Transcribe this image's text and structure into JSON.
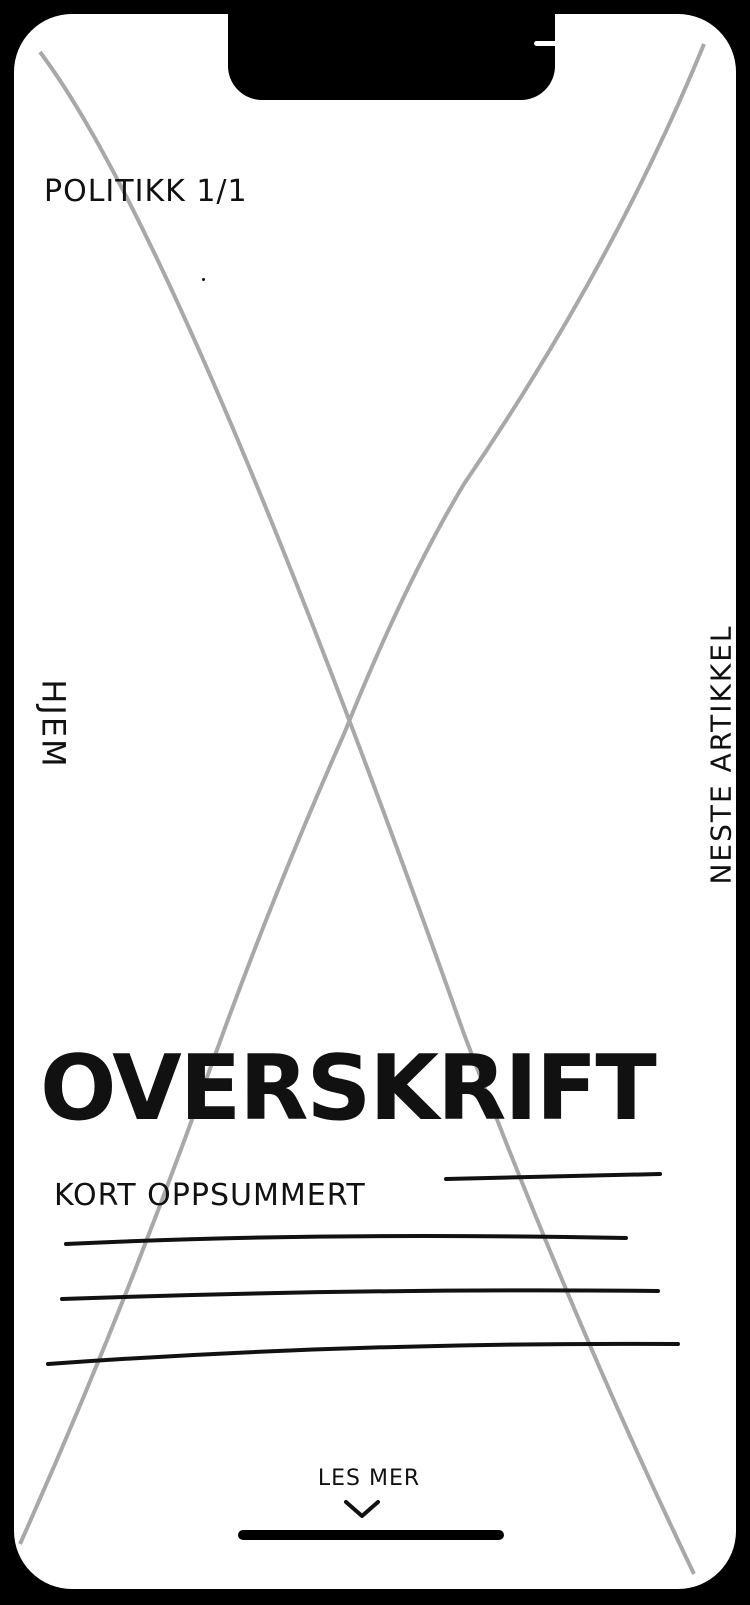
{
  "header": {
    "category": "POLITIKK 1/1"
  },
  "navigation": {
    "left_label": "HJEM",
    "right_label": "NESTE ARTIKKEL"
  },
  "article": {
    "headline": "OVERSKRIFT",
    "summary": "KORT OPPSUMMERT"
  },
  "footer": {
    "read_more": "LES MER"
  },
  "colors": {
    "placeholder": "#A8A8A8",
    "ink": "#111111",
    "frame": "#000000"
  },
  "icons": {
    "read_more": "chevron-down-icon"
  }
}
